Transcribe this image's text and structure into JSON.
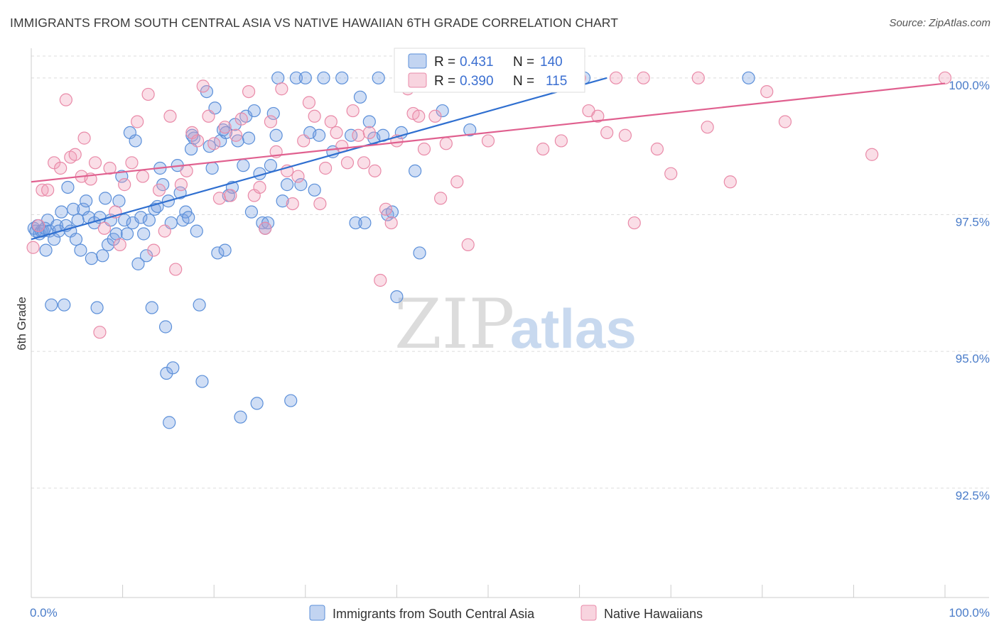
{
  "title": "IMMIGRANTS FROM SOUTH CENTRAL ASIA VS NATIVE HAWAIIAN 6TH GRADE CORRELATION CHART",
  "source": "Source: ZipAtlas.com",
  "watermark": {
    "zip": "ZIP",
    "atlas": "atlas"
  },
  "colors": {
    "blue": "#5b8fd9",
    "blue_fill": "rgba(120,160,225,0.35)",
    "blue_line": "#2f6fd0",
    "pink": "#e98aa8",
    "pink_fill": "rgba(240,160,185,0.35)",
    "pink_line": "#e0608f",
    "grid": "#dcdcdc",
    "tick_text": "#4a7cc9"
  },
  "legend_stats": [
    {
      "r_label": "R =",
      "r": "0.431",
      "n_label": "N =",
      "n": "140"
    },
    {
      "r_label": "R =",
      "r": "0.390",
      "n_label": "N =",
      "n": "115"
    }
  ],
  "chart_data": {
    "type": "scatter",
    "title": "IMMIGRANTS FROM SOUTH CENTRAL ASIA VS NATIVE HAWAIIAN 6TH GRADE CORRELATION CHART",
    "xlabel": "",
    "ylabel": "6th Grade",
    "xlim": [
      0,
      100
    ],
    "ylim": [
      90.5,
      100.4
    ],
    "x_tick_labels": [
      "0.0%",
      "100.0%"
    ],
    "y_ticks": [
      92.5,
      95.0,
      97.5,
      100.0
    ],
    "y_tick_labels": [
      "92.5%",
      "95.0%",
      "97.5%",
      "100.0%"
    ],
    "grid": true,
    "legend_position": "bottom-center",
    "series": [
      {
        "name": "Immigrants from South Central Asia",
        "color": "#5b8fd9",
        "trend": {
          "x": [
            0,
            63
          ],
          "y": [
            97.05,
            100.0
          ]
        },
        "points": [
          [
            0.3,
            97.25
          ],
          [
            0.5,
            97.2
          ],
          [
            0.7,
            97.3
          ],
          [
            0.9,
            97.15
          ],
          [
            1.1,
            97.2
          ],
          [
            1.3,
            97.2
          ],
          [
            1.5,
            97.25
          ],
          [
            1.6,
            96.85
          ],
          [
            1.8,
            97.4
          ],
          [
            2.0,
            97.2
          ],
          [
            2.2,
            95.85
          ],
          [
            2.5,
            97.05
          ],
          [
            2.8,
            97.3
          ],
          [
            3.0,
            97.2
          ],
          [
            3.3,
            97.55
          ],
          [
            3.6,
            95.85
          ],
          [
            3.8,
            97.3
          ],
          [
            4.0,
            98.0
          ],
          [
            4.3,
            97.2
          ],
          [
            4.6,
            97.6
          ],
          [
            4.9,
            97.05
          ],
          [
            5.1,
            97.4
          ],
          [
            5.4,
            96.85
          ],
          [
            5.7,
            97.6
          ],
          [
            6.0,
            97.75
          ],
          [
            6.3,
            97.45
          ],
          [
            6.6,
            96.7
          ],
          [
            6.9,
            97.35
          ],
          [
            7.2,
            95.8
          ],
          [
            7.5,
            97.45
          ],
          [
            7.8,
            96.75
          ],
          [
            8.1,
            97.8
          ],
          [
            8.4,
            96.95
          ],
          [
            8.7,
            97.4
          ],
          [
            9.0,
            97.05
          ],
          [
            9.3,
            97.15
          ],
          [
            9.6,
            97.75
          ],
          [
            9.9,
            98.2
          ],
          [
            10.2,
            97.4
          ],
          [
            10.5,
            97.15
          ],
          [
            10.8,
            99.0
          ],
          [
            11.1,
            97.35
          ],
          [
            11.4,
            98.85
          ],
          [
            11.7,
            96.6
          ],
          [
            12.0,
            97.45
          ],
          [
            12.3,
            97.15
          ],
          [
            12.6,
            96.75
          ],
          [
            12.9,
            97.4
          ],
          [
            13.2,
            95.8
          ],
          [
            13.5,
            97.6
          ],
          [
            13.8,
            97.65
          ],
          [
            14.1,
            98.35
          ],
          [
            14.4,
            98.05
          ],
          [
            14.7,
            95.45
          ],
          [
            14.8,
            94.6
          ],
          [
            15.0,
            97.75
          ],
          [
            15.3,
            97.35
          ],
          [
            15.5,
            94.7
          ],
          [
            15.1,
            93.7
          ],
          [
            16.0,
            98.4
          ],
          [
            16.3,
            97.9
          ],
          [
            16.6,
            97.4
          ],
          [
            16.9,
            97.55
          ],
          [
            17.2,
            97.45
          ],
          [
            17.5,
            98.7
          ],
          [
            17.8,
            98.9
          ],
          [
            18.1,
            97.2
          ],
          [
            18.4,
            95.85
          ],
          [
            17.6,
            98.95
          ],
          [
            18.7,
            94.45
          ],
          [
            19.2,
            99.75
          ],
          [
            19.5,
            98.75
          ],
          [
            19.8,
            98.35
          ],
          [
            20.1,
            99.45
          ],
          [
            20.4,
            96.8
          ],
          [
            20.7,
            98.85
          ],
          [
            21.0,
            99.05
          ],
          [
            21.3,
            99.0
          ],
          [
            21.6,
            97.85
          ],
          [
            21.2,
            96.85
          ],
          [
            22.0,
            98.0
          ],
          [
            22.3,
            99.15
          ],
          [
            22.6,
            98.85
          ],
          [
            22.9,
            93.8
          ],
          [
            23.2,
            98.4
          ],
          [
            23.5,
            99.3
          ],
          [
            23.8,
            98.9
          ],
          [
            24.1,
            97.55
          ],
          [
            24.4,
            99.4
          ],
          [
            24.7,
            94.05
          ],
          [
            25.0,
            98.25
          ],
          [
            25.3,
            97.35
          ],
          [
            25.6,
            97.25
          ],
          [
            25.9,
            97.35
          ],
          [
            26.2,
            98.4
          ],
          [
            26.5,
            99.35
          ],
          [
            26.8,
            98.95
          ],
          [
            27.0,
            100.0
          ],
          [
            27.5,
            97.75
          ],
          [
            28.0,
            98.05
          ],
          [
            28.4,
            94.1
          ],
          [
            29.0,
            100.0
          ],
          [
            29.5,
            98.05
          ],
          [
            30.0,
            100.0
          ],
          [
            30.5,
            99.0
          ],
          [
            31.0,
            97.95
          ],
          [
            31.5,
            98.95
          ],
          [
            32.0,
            100.0
          ],
          [
            33.0,
            98.65
          ],
          [
            34.0,
            100.0
          ],
          [
            35.0,
            98.95
          ],
          [
            35.5,
            97.35
          ],
          [
            36.0,
            99.65
          ],
          [
            36.5,
            97.35
          ],
          [
            37.0,
            99.2
          ],
          [
            37.5,
            98.9
          ],
          [
            38.0,
            100.0
          ],
          [
            38.5,
            98.95
          ],
          [
            39.0,
            97.5
          ],
          [
            39.5,
            97.55
          ],
          [
            40.0,
            96.0
          ],
          [
            40.5,
            99.0
          ],
          [
            41.0,
            100.0
          ],
          [
            42.0,
            98.3
          ],
          [
            42.5,
            96.8
          ],
          [
            44.0,
            100.0
          ],
          [
            45.0,
            99.4
          ],
          [
            48.0,
            99.05
          ],
          [
            53.0,
            99.85
          ],
          [
            57.0,
            100.0
          ],
          [
            60.5,
            100.0
          ],
          [
            78.5,
            100.0
          ]
        ]
      },
      {
        "name": "Native Hawaiians",
        "color": "#e98aa8",
        "trend": {
          "x": [
            0,
            100
          ],
          "y": [
            98.1,
            99.9
          ]
        },
        "points": [
          [
            0.2,
            96.9
          ],
          [
            0.8,
            97.3
          ],
          [
            1.2,
            97.95
          ],
          [
            1.8,
            97.95
          ],
          [
            2.5,
            98.45
          ],
          [
            3.2,
            98.35
          ],
          [
            3.8,
            99.6
          ],
          [
            4.3,
            98.55
          ],
          [
            4.8,
            98.6
          ],
          [
            5.5,
            98.2
          ],
          [
            5.8,
            98.9
          ],
          [
            6.5,
            98.15
          ],
          [
            7.0,
            98.45
          ],
          [
            7.5,
            95.35
          ],
          [
            8.0,
            97.25
          ],
          [
            8.6,
            98.35
          ],
          [
            9.2,
            97.55
          ],
          [
            9.7,
            96.95
          ],
          [
            10.2,
            98.05
          ],
          [
            11.0,
            98.45
          ],
          [
            11.6,
            99.2
          ],
          [
            12.2,
            98.2
          ],
          [
            12.8,
            99.7
          ],
          [
            13.4,
            96.85
          ],
          [
            14.0,
            97.95
          ],
          [
            14.6,
            97.2
          ],
          [
            15.2,
            99.3
          ],
          [
            15.8,
            96.5
          ],
          [
            16.4,
            98.05
          ],
          [
            17.0,
            98.3
          ],
          [
            17.6,
            99.0
          ],
          [
            18.2,
            98.85
          ],
          [
            18.8,
            99.85
          ],
          [
            19.4,
            99.3
          ],
          [
            20.0,
            98.8
          ],
          [
            20.6,
            97.8
          ],
          [
            21.2,
            99.1
          ],
          [
            21.8,
            97.85
          ],
          [
            22.4,
            98.95
          ],
          [
            23.0,
            99.25
          ],
          [
            23.8,
            99.75
          ],
          [
            24.4,
            97.85
          ],
          [
            25.0,
            98.0
          ],
          [
            25.6,
            97.25
          ],
          [
            26.2,
            99.2
          ],
          [
            26.8,
            98.65
          ],
          [
            27.4,
            99.8
          ],
          [
            28.0,
            98.3
          ],
          [
            28.6,
            97.7
          ],
          [
            29.2,
            98.2
          ],
          [
            29.8,
            98.85
          ],
          [
            30.4,
            99.55
          ],
          [
            31.0,
            99.3
          ],
          [
            31.6,
            97.7
          ],
          [
            32.2,
            98.35
          ],
          [
            32.8,
            99.2
          ],
          [
            33.4,
            99.0
          ],
          [
            34.0,
            98.75
          ],
          [
            34.6,
            98.45
          ],
          [
            35.2,
            99.4
          ],
          [
            35.8,
            98.95
          ],
          [
            36.4,
            98.45
          ],
          [
            37.0,
            99.0
          ],
          [
            37.6,
            98.3
          ],
          [
            38.2,
            96.3
          ],
          [
            38.8,
            97.6
          ],
          [
            39.4,
            97.35
          ],
          [
            40.0,
            98.85
          ],
          [
            40.6,
            100.0
          ],
          [
            41.2,
            99.8
          ],
          [
            41.8,
            99.35
          ],
          [
            42.4,
            99.3
          ],
          [
            43.0,
            98.7
          ],
          [
            43.6,
            100.0
          ],
          [
            44.2,
            99.3
          ],
          [
            44.8,
            97.8
          ],
          [
            45.4,
            98.8
          ],
          [
            46.0,
            100.0
          ],
          [
            46.6,
            98.1
          ],
          [
            47.2,
            100.0
          ],
          [
            47.8,
            96.95
          ],
          [
            49.0,
            100.0
          ],
          [
            50.0,
            98.85
          ],
          [
            52.0,
            100.0
          ],
          [
            55.0,
            100.0
          ],
          [
            56.0,
            98.7
          ],
          [
            58.0,
            98.85
          ],
          [
            60.0,
            100.0
          ],
          [
            61.0,
            99.4
          ],
          [
            62.0,
            99.3
          ],
          [
            63.0,
            99.0
          ],
          [
            64.0,
            100.0
          ],
          [
            65.0,
            98.95
          ],
          [
            66.0,
            97.35
          ],
          [
            67.0,
            100.0
          ],
          [
            68.5,
            98.7
          ],
          [
            70.0,
            98.25
          ],
          [
            73.0,
            100.0
          ],
          [
            74.0,
            99.1
          ],
          [
            76.5,
            98.1
          ],
          [
            80.5,
            99.75
          ],
          [
            82.5,
            99.2
          ],
          [
            92.0,
            98.6
          ],
          [
            100.0,
            100.0
          ]
        ]
      }
    ]
  }
}
